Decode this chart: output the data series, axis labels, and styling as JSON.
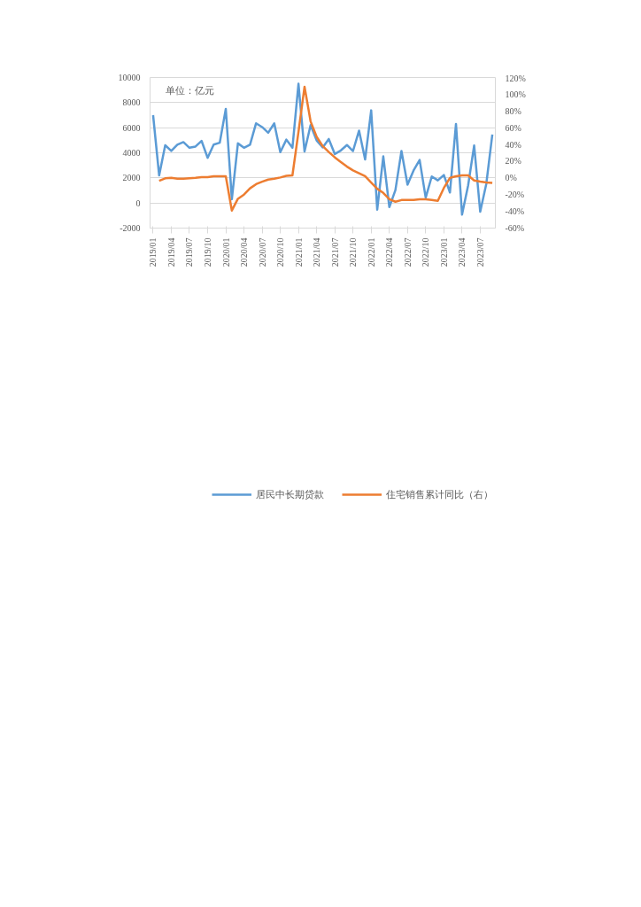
{
  "chart_data": {
    "type": "line",
    "categories": [
      "2019/01",
      null,
      null,
      "2019/04",
      null,
      null,
      "2019/07",
      null,
      null,
      "2019/10",
      null,
      null,
      "2020/01",
      null,
      null,
      "2020/04",
      null,
      null,
      "2020/07",
      null,
      null,
      "2020/10",
      null,
      null,
      "2021/01",
      null,
      null,
      "2021/04",
      null,
      null,
      "2021/07",
      null,
      null,
      "2021/10",
      null,
      null,
      "2022/01",
      null,
      null,
      "2022/04",
      null,
      null,
      "2022/07",
      null,
      null,
      "2022/10",
      null,
      null,
      "2023/01",
      null,
      null,
      "2023/04",
      null,
      null,
      "2023/07",
      null,
      null
    ],
    "series": [
      {
        "name": "居民中长期贷款",
        "color": "#5b9bd5",
        "values": [
          7000,
          2200,
          4600,
          4150,
          4650,
          4850,
          4400,
          4500,
          4950,
          3600,
          4650,
          4800,
          7500,
          300,
          4750,
          4400,
          4650,
          6350,
          6050,
          5600,
          6350,
          4050,
          5050,
          4400,
          9500,
          4100,
          6200,
          4980,
          4430,
          5100,
          3900,
          4190,
          4620,
          4140,
          5770,
          3470,
          7380,
          -530,
          3710,
          -330,
          1030,
          4140,
          1460,
          2590,
          3430,
          430,
          2110,
          1800,
          2230,
          840,
          6300,
          -930,
          1390,
          4580,
          -700,
          1510,
          5460
        ]
      },
      {
        "name": "住宅销售累计同比（右）",
        "color": "#ed7d31",
        "axis": "y2",
        "values": [
          null,
          -3.5,
          -0.5,
          0,
          -1,
          -1,
          -0.5,
          0,
          1,
          1,
          2,
          2,
          2,
          -39,
          -25,
          -20,
          -12.5,
          -7.5,
          -4.5,
          -2,
          -1,
          0.5,
          2.5,
          3,
          55,
          109,
          67.5,
          49,
          38,
          31,
          24.5,
          19,
          13.5,
          9,
          5.5,
          2,
          -5.5,
          -13,
          -18,
          -25.5,
          -28.5,
          -26.5,
          -26.5,
          -26.5,
          -25.5,
          -25.5,
          -26.5,
          -27.5,
          -12,
          0,
          2,
          3,
          3,
          -3,
          -4.5,
          -5.5,
          -6
        ]
      }
    ],
    "ylim": [
      -2000,
      10000
    ],
    "yticks": [
      -2000,
      0,
      2000,
      4000,
      6000,
      8000,
      10000
    ],
    "y2lim": [
      -60,
      120
    ],
    "y2ticks": [
      {
        "value": -60,
        "label": "-60%"
      },
      {
        "value": -40,
        "label": "-40%"
      },
      {
        "value": -20,
        "label": "-20%"
      },
      {
        "value": 0,
        "label": "0%"
      },
      {
        "value": 20,
        "label": "20%"
      },
      {
        "value": 40,
        "label": "40%"
      },
      {
        "value": 60,
        "label": "60%"
      },
      {
        "value": 80,
        "label": "80%"
      },
      {
        "value": 100,
        "label": "100%"
      },
      {
        "value": 120,
        "label": "120%"
      }
    ],
    "annotations": [
      "单位：亿元"
    ],
    "grid": "y",
    "legend": "bottom",
    "marker": "none",
    "line_style": "solid"
  }
}
